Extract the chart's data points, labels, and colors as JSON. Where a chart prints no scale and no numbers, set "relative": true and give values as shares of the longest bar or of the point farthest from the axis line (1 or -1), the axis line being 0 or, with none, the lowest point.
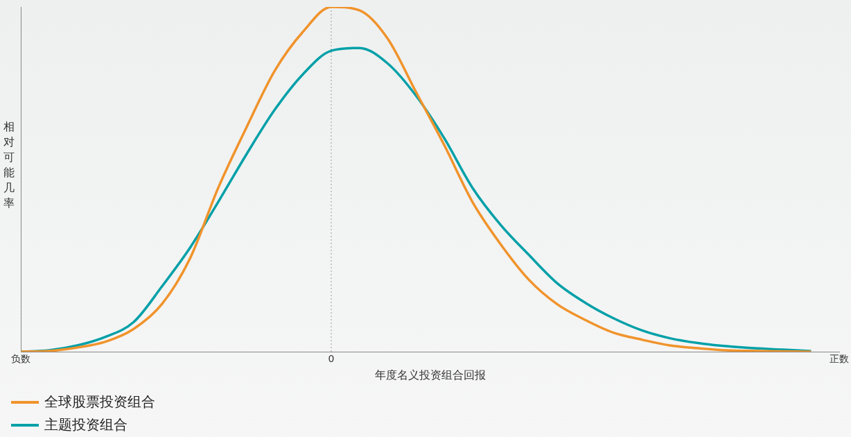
{
  "chart_data": {
    "type": "line",
    "relative": true,
    "xlabel": "年度名义投资组合回报",
    "ylabel": "相对可能几率",
    "categories": [
      "负数",
      null,
      null,
      null,
      null,
      null,
      null,
      null,
      null,
      null,
      null,
      "0",
      null,
      null,
      null,
      null,
      null,
      null,
      null,
      null,
      null,
      null,
      null,
      null,
      null,
      null,
      null,
      null,
      null,
      "正数"
    ],
    "grid": false,
    "legend": "bottom left",
    "marker": "none",
    "line_style": "solid",
    "ref_lines": [
      {
        "axis": "x",
        "value": "0",
        "color": "#999999",
        "line_style": "dotted"
      }
    ],
    "series": [
      {
        "name": "全球股票投资组合",
        "color": "#f0932b",
        "values": [
          0,
          0.002,
          0.012,
          0.029,
          0.066,
          0.138,
          0.271,
          0.476,
          0.651,
          0.815,
          0.928,
          1,
          0.99,
          0.908,
          0.754,
          0.6,
          0.435,
          0.312,
          0.209,
          0.138,
          0.092,
          0.055,
          0.035,
          0.018,
          0.01,
          0.004,
          0.002,
          0.001,
          0,
          null
        ]
      },
      {
        "name": "主题投资组合",
        "color": "#00a0a8",
        "values": [
          0,
          0.004,
          0.018,
          0.043,
          0.086,
          0.189,
          0.302,
          0.435,
          0.573,
          0.702,
          0.805,
          0.873,
          0.881,
          0.836,
          0.743,
          0.62,
          0.476,
          0.368,
          0.281,
          0.199,
          0.142,
          0.097,
          0.062,
          0.039,
          0.025,
          0.016,
          0.01,
          0.006,
          0.002,
          null
        ]
      }
    ]
  }
}
